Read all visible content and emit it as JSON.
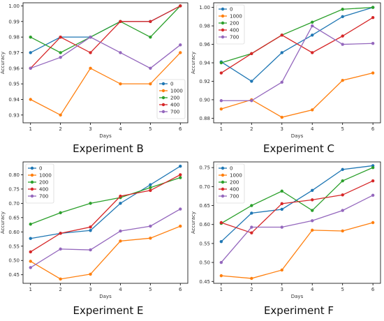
{
  "chart_data": [
    {
      "type": "line",
      "caption": "Experiment B",
      "xlabel": "Days",
      "ylabel": "Accuracy",
      "x": [
        1,
        2,
        3,
        4,
        5,
        6
      ],
      "ylim": [
        0.925,
        1.002
      ],
      "yticks": [
        0.93,
        0.94,
        0.95,
        0.96,
        0.97,
        0.98,
        0.99,
        1.0
      ],
      "ytick_labels": [
        "0.93",
        "0.94",
        "0.95",
        "0.96",
        "0.97",
        "0.98",
        "0.99",
        "1.00"
      ],
      "legend_position": "lower-right",
      "series": [
        {
          "name": "0",
          "color": "#1f77b4",
          "values": [
            0.97,
            0.98,
            0.98,
            0.99,
            0.99,
            1.0
          ]
        },
        {
          "name": "1000",
          "color": "#ff7f0e",
          "values": [
            0.94,
            0.93,
            0.96,
            0.95,
            0.95,
            0.97
          ]
        },
        {
          "name": "200",
          "color": "#2ca02c",
          "values": [
            0.98,
            0.97,
            0.98,
            0.99,
            0.98,
            1.0
          ]
        },
        {
          "name": "400",
          "color": "#d62728",
          "values": [
            0.96,
            0.98,
            0.97,
            0.99,
            0.99,
            1.0
          ]
        },
        {
          "name": "700",
          "color": "#9467bd",
          "values": [
            0.96,
            0.967,
            0.98,
            0.97,
            0.96,
            0.975
          ]
        }
      ]
    },
    {
      "type": "line",
      "caption": "Experiment C",
      "xlabel": "Days",
      "ylabel": "Accuracy",
      "x": [
        1,
        2,
        3,
        4,
        5,
        6
      ],
      "ylim": [
        0.875,
        1.005
      ],
      "yticks": [
        0.88,
        0.9,
        0.92,
        0.94,
        0.96,
        0.98,
        1.0
      ],
      "ytick_labels": [
        "0.88",
        "0.90",
        "0.92",
        "0.94",
        "0.96",
        "0.98",
        "1.00"
      ],
      "legend_position": "top-left",
      "series": [
        {
          "name": "0",
          "color": "#1f77b4",
          "values": [
            0.941,
            0.92,
            0.951,
            0.97,
            0.99,
            1.0
          ]
        },
        {
          "name": "1000",
          "color": "#ff7f0e",
          "values": [
            0.89,
            0.9,
            0.881,
            0.889,
            0.921,
            0.929
          ]
        },
        {
          "name": "200",
          "color": "#2ca02c",
          "values": [
            0.94,
            0.95,
            0.97,
            0.984,
            0.998,
            1.0
          ]
        },
        {
          "name": "400",
          "color": "#d62728",
          "values": [
            0.929,
            0.95,
            0.97,
            0.951,
            0.969,
            0.989
          ]
        },
        {
          "name": "700",
          "color": "#9467bd",
          "values": [
            0.899,
            0.899,
            0.919,
            0.98,
            0.96,
            0.961
          ]
        }
      ]
    },
    {
      "type": "line",
      "caption": "Experiment E",
      "xlabel": "Days",
      "ylabel": "Accuracy",
      "x": [
        1,
        2,
        3,
        4,
        5,
        6
      ],
      "ylim": [
        0.42,
        0.845
      ],
      "yticks": [
        0.45,
        0.5,
        0.55,
        0.6,
        0.65,
        0.7,
        0.75,
        0.8
      ],
      "ytick_labels": [
        "0.45",
        "0.50",
        "0.55",
        "0.60",
        "0.65",
        "0.70",
        "0.75",
        "0.80"
      ],
      "legend_position": "top-left",
      "series": [
        {
          "name": "0",
          "color": "#1f77b4",
          "values": [
            0.577,
            0.595,
            0.605,
            0.7,
            0.765,
            0.83
          ]
        },
        {
          "name": "1000",
          "color": "#ff7f0e",
          "values": [
            0.497,
            0.435,
            0.452,
            0.568,
            0.578,
            0.62
          ]
        },
        {
          "name": "200",
          "color": "#2ca02c",
          "values": [
            0.627,
            0.667,
            0.7,
            0.72,
            0.755,
            0.79
          ]
        },
        {
          "name": "400",
          "color": "#d62728",
          "values": [
            0.53,
            0.595,
            0.617,
            0.725,
            0.745,
            0.8
          ]
        },
        {
          "name": "700",
          "color": "#9467bd",
          "values": [
            0.475,
            0.54,
            0.537,
            0.603,
            0.62,
            0.68
          ]
        }
      ]
    },
    {
      "type": "line",
      "caption": "Experiment F",
      "xlabel": "Days",
      "ylabel": "Accuracy",
      "x": [
        1,
        2,
        3,
        4,
        5,
        6
      ],
      "ylim": [
        0.445,
        0.765
      ],
      "yticks": [
        0.45,
        0.5,
        0.55,
        0.6,
        0.65,
        0.7,
        0.75
      ],
      "ytick_labels": [
        "0.45",
        "0.50",
        "0.55",
        "0.60",
        "0.65",
        "0.70",
        "0.75"
      ],
      "legend_position": "top-left",
      "series": [
        {
          "name": "0",
          "color": "#1f77b4",
          "values": [
            0.555,
            0.63,
            0.64,
            0.69,
            0.745,
            0.755
          ]
        },
        {
          "name": "1000",
          "color": "#ff7f0e",
          "values": [
            0.465,
            0.458,
            0.48,
            0.585,
            0.583,
            0.605
          ]
        },
        {
          "name": "200",
          "color": "#2ca02c",
          "values": [
            0.603,
            0.65,
            0.688,
            0.637,
            0.715,
            0.75
          ]
        },
        {
          "name": "400",
          "color": "#d62728",
          "values": [
            0.605,
            0.578,
            0.655,
            0.665,
            0.678,
            0.715
          ]
        },
        {
          "name": "700",
          "color": "#9467bd",
          "values": [
            0.5,
            0.593,
            0.593,
            0.61,
            0.637,
            0.677
          ]
        }
      ]
    }
  ]
}
